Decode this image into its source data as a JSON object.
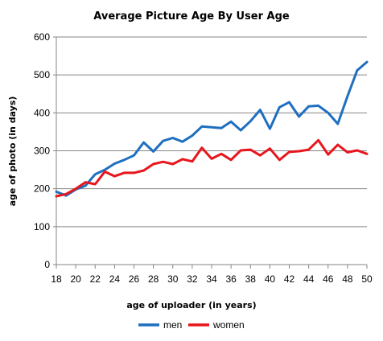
{
  "chart_data": {
    "type": "line",
    "title": "Average Picture Age By User Age",
    "xlabel": "age of uploader (in years)",
    "ylabel": "age of photo (in days)",
    "xlim": [
      18,
      50
    ],
    "ylim": [
      0,
      600
    ],
    "xticks": [
      18,
      20,
      22,
      24,
      26,
      28,
      30,
      32,
      34,
      36,
      38,
      40,
      42,
      44,
      46,
      48,
      50
    ],
    "yticks": [
      0,
      100,
      200,
      300,
      400,
      500,
      600
    ],
    "grid": "horizontal",
    "legend_position": "bottom",
    "x": [
      18,
      19,
      20,
      21,
      22,
      23,
      24,
      25,
      26,
      27,
      28,
      29,
      30,
      31,
      32,
      33,
      34,
      35,
      36,
      37,
      38,
      39,
      40,
      41,
      42,
      43,
      44,
      45,
      46,
      47,
      48,
      49,
      50
    ],
    "series": [
      {
        "name": "men",
        "color": "#1f6fbf",
        "values": [
          192,
          182,
          198,
          208,
          238,
          250,
          266,
          276,
          288,
          322,
          298,
          326,
          334,
          324,
          340,
          364,
          362,
          360,
          377,
          354,
          378,
          408,
          358,
          415,
          428,
          390,
          417,
          419,
          400,
          371,
          444,
          512,
          534
        ]
      },
      {
        "name": "women",
        "color": "#e8161d",
        "values": [
          180,
          186,
          200,
          217,
          212,
          245,
          233,
          242,
          242,
          248,
          265,
          271,
          265,
          278,
          272,
          308,
          279,
          292,
          276,
          301,
          303,
          288,
          306,
          276,
          297,
          299,
          303,
          328,
          290,
          316,
          296,
          301,
          292
        ]
      }
    ]
  }
}
